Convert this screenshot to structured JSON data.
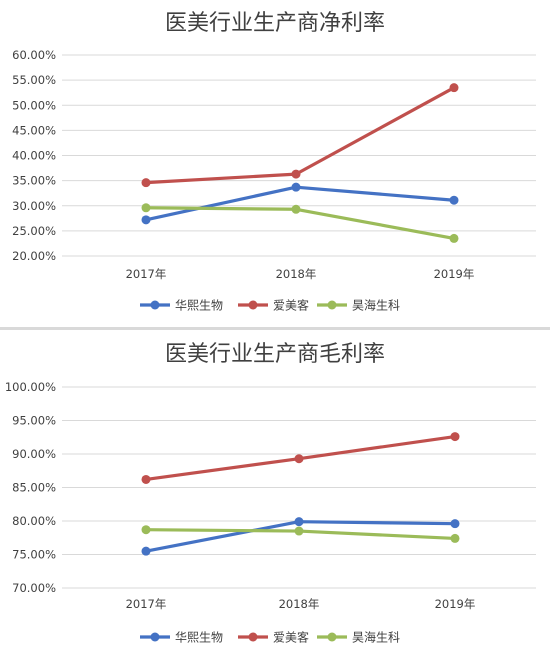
{
  "chart_data": [
    {
      "type": "line",
      "title": "医美行业生产商净利率",
      "xlabel": "",
      "ylabel": "",
      "categories": [
        "2017年",
        "2018年",
        "2019年"
      ],
      "ylim": [
        0.2,
        0.6
      ],
      "yticks": [
        0.6,
        0.55,
        0.5,
        0.45,
        0.4,
        0.35,
        0.3,
        0.25,
        0.2
      ],
      "ytick_labels": [
        "60.00%",
        "55.00%",
        "50.00%",
        "45.00%",
        "40.00%",
        "35.00%",
        "30.00%",
        "25.00%",
        "20.00%"
      ],
      "grid": "horizontal",
      "legend_position": "bottom",
      "series": [
        {
          "name": "华熙生物",
          "color": "#4472c4",
          "values": [
            0.272,
            0.337,
            0.311
          ]
        },
        {
          "name": "爱美客",
          "color": "#c0504d",
          "values": [
            0.346,
            0.363,
            0.535
          ]
        },
        {
          "name": "昊海生科",
          "color": "#9bbb59",
          "values": [
            0.296,
            0.293,
            0.235
          ]
        }
      ]
    },
    {
      "type": "line",
      "title": "医美行业生产商毛利率",
      "xlabel": "",
      "ylabel": "",
      "categories": [
        "2017年",
        "2018年",
        "2019年"
      ],
      "ylim": [
        0.7,
        1.0
      ],
      "yticks": [
        1.0,
        0.95,
        0.9,
        0.85,
        0.8,
        0.75,
        0.7
      ],
      "ytick_labels": [
        "100.00%",
        "95.00%",
        "90.00%",
        "85.00%",
        "80.00%",
        "75.00%",
        "70.00%"
      ],
      "grid": "horizontal",
      "legend_position": "bottom",
      "series": [
        {
          "name": "华熙生物",
          "color": "#4472c4",
          "values": [
            0.755,
            0.799,
            0.796
          ]
        },
        {
          "name": "爱美客",
          "color": "#c0504d",
          "values": [
            0.862,
            0.893,
            0.926
          ]
        },
        {
          "name": "昊海生科",
          "color": "#9bbb59",
          "values": [
            0.787,
            0.785,
            0.774
          ]
        }
      ]
    }
  ]
}
